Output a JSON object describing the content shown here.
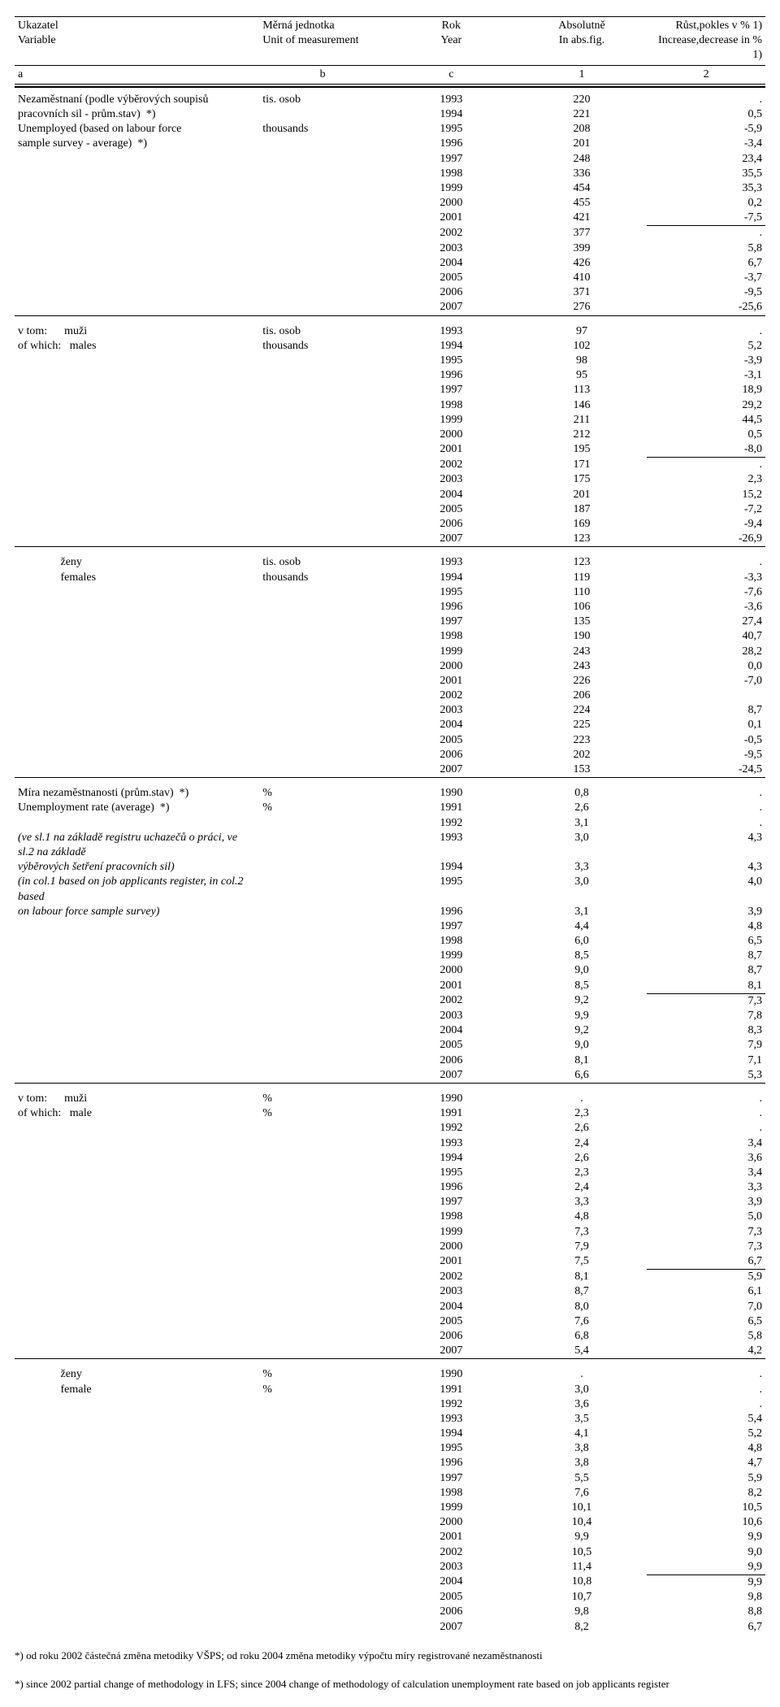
{
  "header": {
    "ukazatel": "Ukazatel",
    "variable": "Variable",
    "merna": "Měrná jednotka",
    "unit": "Unit of measurement",
    "rok": "Rok",
    "year": "Year",
    "abs": "Absolutně",
    "absfig": "In abs.fig.",
    "rust": "Růst,pokles v % 1)",
    "incdec": "Increase,decrease in % 1)",
    "a": "a",
    "b": "b",
    "c": "c",
    "one": "1",
    "two": "2"
  },
  "sections": [
    {
      "labels": [
        "Nezaměstnaní (podle výběrových soupisů",
        "pracovních sil - prům.stav)  *)",
        "Unemployed (based on labour force",
        "sample survey - average)  *)"
      ],
      "units": [
        "tis. osob",
        "",
        "thousands",
        ""
      ],
      "rows": [
        [
          "1993",
          "220",
          "."
        ],
        [
          "1994",
          "221",
          "0,5"
        ],
        [
          "1995",
          "208",
          "-5,9"
        ],
        [
          "1996",
          "201",
          "-3,4"
        ],
        [
          "1997",
          "248",
          "23,4"
        ],
        [
          "1998",
          "336",
          "35,5"
        ],
        [
          "1999",
          "454",
          "35,3"
        ],
        [
          "2000",
          "455",
          "0,2"
        ],
        [
          "2001",
          "421",
          "-7,5"
        ],
        [
          "2002",
          "377",
          "."
        ],
        [
          "2003",
          "399",
          "5,8"
        ],
        [
          "2004",
          "426",
          "6,7"
        ],
        [
          "2005",
          "410",
          "-3,7"
        ],
        [
          "2006",
          "371",
          "-9,5"
        ],
        [
          "2007",
          "276",
          "-25,6"
        ]
      ],
      "extraMidBorderIndex": 9
    },
    {
      "labels": [
        "v tom:      muži",
        "of which:   males"
      ],
      "units": [
        "tis. osob",
        "thousands"
      ],
      "rows": [
        [
          "1993",
          "97",
          "."
        ],
        [
          "1994",
          "102",
          "5,2"
        ],
        [
          "1995",
          "98",
          "-3,9"
        ],
        [
          "1996",
          "95",
          "-3,1"
        ],
        [
          "1997",
          "113",
          "18,9"
        ],
        [
          "1998",
          "146",
          "29,2"
        ],
        [
          "1999",
          "211",
          "44,5"
        ],
        [
          "2000",
          "212",
          "0,5"
        ],
        [
          "2001",
          "195",
          "-8,0"
        ],
        [
          "2002",
          "171",
          "."
        ],
        [
          "2003",
          "175",
          "2,3"
        ],
        [
          "2004",
          "201",
          "15,2"
        ],
        [
          "2005",
          "187",
          "-7,2"
        ],
        [
          "2006",
          "169",
          "-9,4"
        ],
        [
          "2007",
          "123",
          "-26,9"
        ]
      ],
      "extraMidBorderIndex": 9
    },
    {
      "labels": [
        "               ženy",
        "               females"
      ],
      "units": [
        "tis. osob",
        "thousands"
      ],
      "rows": [
        [
          "1993",
          "123",
          "."
        ],
        [
          "1994",
          "119",
          "-3,3"
        ],
        [
          "1995",
          "110",
          "-7,6"
        ],
        [
          "1996",
          "106",
          "-3,6"
        ],
        [
          "1997",
          "135",
          "27,4"
        ],
        [
          "1998",
          "190",
          "40,7"
        ],
        [
          "1999",
          "243",
          "28,2"
        ],
        [
          "2000",
          "243",
          "0,0"
        ],
        [
          "2001",
          "226",
          "-7,0"
        ],
        [
          "2002",
          "206",
          ""
        ],
        [
          "2003",
          "224",
          "8,7"
        ],
        [
          "2004",
          "225",
          "0,1"
        ],
        [
          "2005",
          "223",
          "-0,5"
        ],
        [
          "2006",
          "202",
          "-9,5"
        ],
        [
          "2007",
          "153",
          "-24,5"
        ]
      ]
    },
    {
      "labels": [
        "Míra nezaměstnanosti (prům.stav)  *)",
        "Unemployment rate (average)  *)",
        "",
        "(ve sl.1 na základě registru uchazečů o práci, ve sl.2 na základě",
        "výběrových šetření pracovních sil)",
        "(in col.1 based on job applicants register, in col.2 based",
        "on labour force sample survey)"
      ],
      "italicFrom": 3,
      "units": [
        "%",
        "%",
        "",
        "",
        "",
        "",
        ""
      ],
      "rows": [
        [
          "1990",
          "0,8",
          "."
        ],
        [
          "1991",
          "2,6",
          "."
        ],
        [
          "1992",
          "3,1",
          "."
        ],
        [
          "1993",
          "3,0",
          "4,3"
        ],
        [
          "1994",
          "3,3",
          "4,3"
        ],
        [
          "1995",
          "3,0",
          "4,0"
        ],
        [
          "1996",
          "3,1",
          "3,9"
        ],
        [
          "1997",
          "4,4",
          "4,8"
        ],
        [
          "1998",
          "6,0",
          "6,5"
        ],
        [
          "1999",
          "8,5",
          "8,7"
        ],
        [
          "2000",
          "9,0",
          "8,7"
        ],
        [
          "2001",
          "8,5",
          "8,1"
        ],
        [
          "2002",
          "9,2",
          "7,3"
        ],
        [
          "2003",
          "9,9",
          "7,8"
        ],
        [
          "2004",
          "9,2",
          "8,3"
        ],
        [
          "2005",
          "9,0",
          "7,9"
        ],
        [
          "2006",
          "8,1",
          "7,1"
        ],
        [
          "2007",
          "6,6",
          "5,3"
        ]
      ],
      "extraMidBorderIndex": 12
    },
    {
      "labels": [
        "v tom:      muži",
        "of which:   male"
      ],
      "units": [
        "%",
        "%"
      ],
      "rows": [
        [
          "1990",
          ".",
          "."
        ],
        [
          "1991",
          "2,3",
          "."
        ],
        [
          "1992",
          "2,6",
          "."
        ],
        [
          "1993",
          "2,4",
          "3,4"
        ],
        [
          "1994",
          "2,6",
          "3,6"
        ],
        [
          "1995",
          "2,3",
          "3,4"
        ],
        [
          "1996",
          "2,4",
          "3,3"
        ],
        [
          "1997",
          "3,3",
          "3,9"
        ],
        [
          "1998",
          "4,8",
          "5,0"
        ],
        [
          "1999",
          "7,3",
          "7,3"
        ],
        [
          "2000",
          "7,9",
          "7,3"
        ],
        [
          "2001",
          "7,5",
          "6,7"
        ],
        [
          "2002",
          "8,1",
          "5,9"
        ],
        [
          "2003",
          "8,7",
          "6,1"
        ],
        [
          "2004",
          "8,0",
          "7,0"
        ],
        [
          "2005",
          "7,6",
          "6,5"
        ],
        [
          "2006",
          "6,8",
          "5,8"
        ],
        [
          "2007",
          "5,4",
          "4,2"
        ]
      ],
      "extraMidBorderIndex": 12
    },
    {
      "labels": [
        "               ženy",
        "               female"
      ],
      "units": [
        "%",
        "%"
      ],
      "rows": [
        [
          "1990",
          ".",
          "."
        ],
        [
          "1991",
          "3,0",
          "."
        ],
        [
          "1992",
          "3,6",
          "."
        ],
        [
          "1993",
          "3,5",
          "5,4"
        ],
        [
          "1994",
          "4,1",
          "5,2"
        ],
        [
          "1995",
          "3,8",
          "4,8"
        ],
        [
          "1996",
          "3,8",
          "4,7"
        ],
        [
          "1997",
          "5,5",
          "5,9"
        ],
        [
          "1998",
          "7,6",
          "8,2"
        ],
        [
          "1999",
          "10,1",
          "10,5"
        ],
        [
          "2000",
          "10,4",
          "10,6"
        ],
        [
          "2001",
          "9,9",
          "9,9"
        ],
        [
          "2002",
          "10,5",
          "9,0"
        ],
        [
          "2003",
          "11,4",
          "9,9"
        ],
        [
          "2004",
          "10,8",
          "9,9"
        ],
        [
          "2005",
          "10,7",
          "9,8"
        ],
        [
          "2006",
          "9,8",
          "8,8"
        ],
        [
          "2007",
          "8,2",
          "6,7"
        ]
      ],
      "extraMidBorderIndex": 14
    }
  ],
  "footnotes": [
    "*) od roku 2002 částečná změna metodiky VŠPS; od roku 2004 změna metodiky výpočtu míry registrované nezaměstnanosti",
    "*) since 2002 partial change of methodology in LFS; since 2004 change of methodology of calculation unemployment rate based on job applicants register"
  ]
}
